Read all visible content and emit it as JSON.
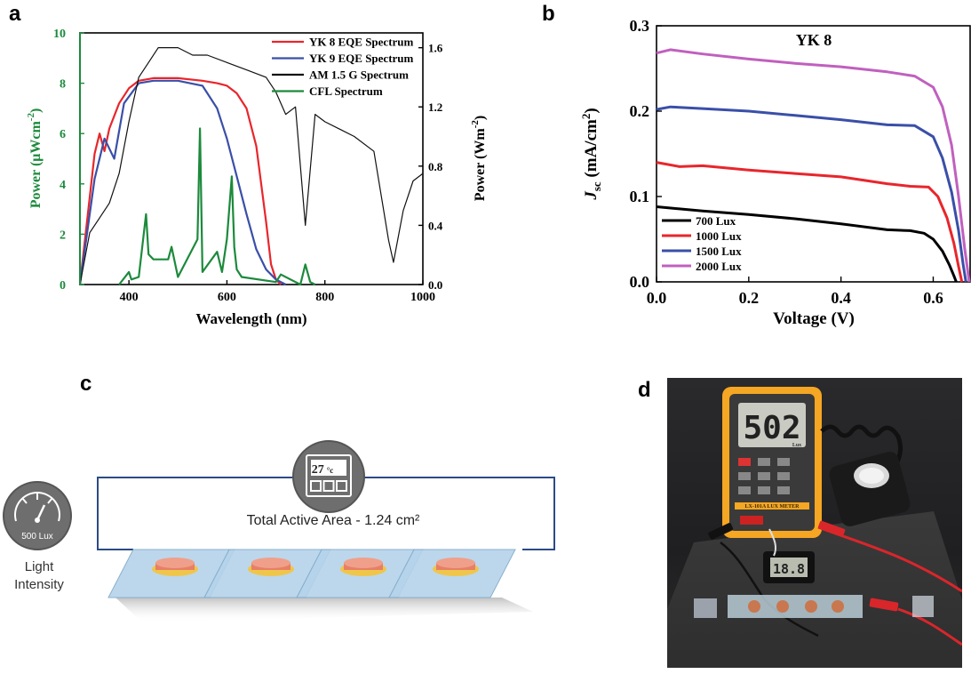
{
  "panels": {
    "a": "a",
    "b": "b",
    "c": "c",
    "d": "d"
  },
  "chart_data": [
    {
      "type": "line",
      "panel": "a",
      "xlabel": "Wavelength (nm)",
      "ylabel_left": "Power (μWcm",
      "ylabel_left_sup": "-2",
      "ylabel_left_end": ")",
      "ylabel_right": "Power (Wm",
      "ylabel_right_sup": "-2",
      "ylabel_right_end": ")",
      "xlim": [
        300,
        1000
      ],
      "ylim_left": [
        0,
        10
      ],
      "ylim_right": [
        0,
        1.7
      ],
      "x_ticks": [
        "400",
        "600",
        "800",
        "1000"
      ],
      "y_left_ticks": [
        "0",
        "2",
        "4",
        "6",
        "8",
        "10"
      ],
      "y_right_ticks": [
        "0.0",
        "0.4",
        "0.8",
        "1.2",
        "1.6"
      ],
      "legend_position": "top-right",
      "colors": {
        "yk8": "#e8262c",
        "yk9": "#3a4fa8",
        "am15": "#111111",
        "cfl": "#1c8a3c",
        "left_axis": "#1c8a3c"
      },
      "series": [
        {
          "name": "YK 8 EQE Spectrum",
          "axis": "left",
          "x": [
            300,
            330,
            340,
            350,
            360,
            380,
            400,
            420,
            450,
            500,
            550,
            580,
            600,
            620,
            640,
            660,
            680,
            690,
            700,
            710
          ],
          "y": [
            0,
            5.2,
            6.0,
            5.3,
            6.2,
            7.2,
            7.8,
            8.1,
            8.2,
            8.2,
            8.1,
            8.0,
            7.9,
            7.6,
            7.0,
            5.5,
            2.5,
            0.8,
            0.2,
            0
          ]
        },
        {
          "name": "YK 9 EQE Spectrum",
          "axis": "left",
          "x": [
            300,
            330,
            350,
            370,
            390,
            420,
            450,
            500,
            550,
            580,
            600,
            620,
            640,
            660,
            680,
            700,
            720
          ],
          "y": [
            0,
            4.2,
            5.8,
            5.0,
            7.2,
            8.0,
            8.1,
            8.1,
            7.9,
            7.0,
            5.8,
            4.3,
            2.8,
            1.4,
            0.6,
            0.2,
            0
          ]
        },
        {
          "name": "AM 1.5 G Spectrum",
          "axis": "right",
          "x": [
            300,
            320,
            340,
            360,
            380,
            400,
            420,
            440,
            460,
            480,
            500,
            530,
            560,
            600,
            640,
            680,
            700,
            720,
            740,
            760,
            780,
            800,
            830,
            860,
            900,
            930,
            940,
            960,
            980,
            1000
          ],
          "y": [
            0.0,
            0.35,
            0.45,
            0.55,
            0.75,
            1.1,
            1.4,
            1.5,
            1.6,
            1.6,
            1.6,
            1.55,
            1.55,
            1.5,
            1.45,
            1.4,
            1.3,
            1.15,
            1.2,
            0.4,
            1.15,
            1.1,
            1.05,
            1.0,
            0.9,
            0.3,
            0.15,
            0.5,
            0.7,
            0.75
          ]
        },
        {
          "name": "CFL Spectrum",
          "axis": "left",
          "x": [
            380,
            400,
            405,
            420,
            435,
            440,
            450,
            480,
            487,
            500,
            540,
            545,
            550,
            580,
            590,
            600,
            610,
            615,
            620,
            630,
            700,
            710,
            750,
            760,
            770,
            780
          ],
          "y": [
            0,
            0.5,
            0.2,
            0.3,
            2.8,
            1.2,
            1.0,
            1.0,
            1.5,
            0.3,
            1.8,
            6.2,
            0.5,
            1.3,
            0.5,
            1.8,
            4.3,
            1.5,
            0.6,
            0.3,
            0.1,
            0.4,
            0,
            0.8,
            0.1,
            0
          ]
        }
      ]
    },
    {
      "type": "line",
      "panel": "b",
      "title": "YK 8",
      "xlabel": "Voltage (V)",
      "ylabel": "J",
      "ylabel_sub": "sc",
      "ylabel_unit": " (mA/cm",
      "ylabel_unit_sup": "2",
      "ylabel_unit_end": ")",
      "xlim": [
        0,
        0.68
      ],
      "ylim": [
        0,
        0.3
      ],
      "x_ticks": [
        "0.0",
        "0.2",
        "0.4",
        "0.6"
      ],
      "y_ticks": [
        "0.0",
        "0.1",
        "0.2",
        "0.3"
      ],
      "legend_position": "bottom-left",
      "series": [
        {
          "name": "700 Lux",
          "color": "#000000",
          "x": [
            0,
            0.1,
            0.2,
            0.3,
            0.4,
            0.5,
            0.55,
            0.58,
            0.6,
            0.62,
            0.635,
            0.645,
            0.65
          ],
          "y": [
            0.088,
            0.083,
            0.079,
            0.074,
            0.068,
            0.061,
            0.06,
            0.057,
            0.05,
            0.036,
            0.02,
            0.007,
            0
          ]
        },
        {
          "name": "1000 Lux",
          "color": "#e8262c",
          "x": [
            0,
            0.05,
            0.1,
            0.2,
            0.3,
            0.4,
            0.5,
            0.55,
            0.59,
            0.61,
            0.63,
            0.645,
            0.655,
            0.662
          ],
          "y": [
            0.14,
            0.135,
            0.136,
            0.131,
            0.127,
            0.123,
            0.115,
            0.112,
            0.111,
            0.1,
            0.075,
            0.045,
            0.018,
            0
          ]
        },
        {
          "name": "1500 Lux",
          "color": "#3a4fa8",
          "x": [
            0,
            0.03,
            0.1,
            0.2,
            0.3,
            0.4,
            0.5,
            0.56,
            0.6,
            0.62,
            0.64,
            0.655,
            0.665,
            0.671
          ],
          "y": [
            0.202,
            0.205,
            0.203,
            0.2,
            0.195,
            0.19,
            0.184,
            0.183,
            0.17,
            0.145,
            0.105,
            0.06,
            0.02,
            0
          ]
        },
        {
          "name": "2000 Lux",
          "color": "#c060bf",
          "x": [
            0,
            0.03,
            0.1,
            0.2,
            0.3,
            0.4,
            0.5,
            0.56,
            0.6,
            0.62,
            0.64,
            0.655,
            0.668,
            0.678
          ],
          "y": [
            0.268,
            0.272,
            0.267,
            0.261,
            0.256,
            0.252,
            0.246,
            0.241,
            0.228,
            0.205,
            0.16,
            0.1,
            0.04,
            0
          ]
        }
      ]
    }
  ],
  "diagram_c": {
    "temperature": "27",
    "temperature_unit": "°c",
    "lux_value": "500 Lux",
    "caption_light": "Light",
    "caption_intensity": "Intensity",
    "area_label": "Total Active Area - 1.24 cm²",
    "colors": {
      "circuit": "#2c4a86",
      "substrate": "#b5d3ea",
      "cell": "#e77f67",
      "cell_rim": "#f0c64a",
      "icon": "#6e6e6e"
    }
  },
  "photo_d": {
    "meter_display": "502",
    "meter_unit": "Lux",
    "meter_model": "LX-101A LUX METER",
    "thermo_display": "18.8",
    "colors": {
      "meter_body": "#f5a623",
      "meter_face": "#3a3a3a",
      "wire_red": "#d9262b"
    }
  }
}
